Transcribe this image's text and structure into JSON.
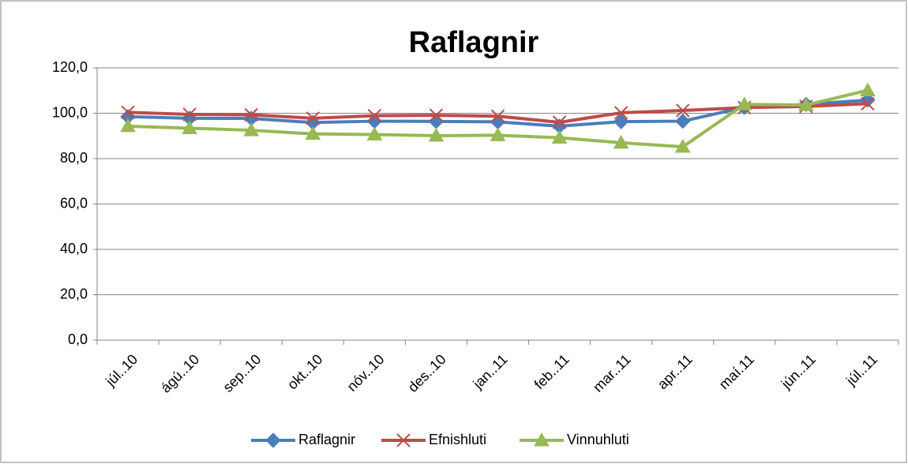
{
  "chart_data": {
    "type": "line",
    "title": "Raflagnir",
    "categories": [
      "júl..10",
      "ágú..10",
      "sep..10",
      "okt..10",
      "nóv..10",
      "des..10",
      "jan..11",
      "feb..11",
      "mar..11",
      "apr..11",
      "maí.11",
      "jún..11",
      "júl..11"
    ],
    "series": [
      {
        "name": "Raflagnir",
        "color": "#4a7ebb",
        "marker": "diamond",
        "values": [
          98.5,
          97.8,
          97.7,
          95.9,
          96.5,
          96.4,
          96.2,
          94.3,
          96.3,
          96.5,
          102.6,
          103.9,
          105.8
        ]
      },
      {
        "name": "Efnishluti",
        "color": "#be4b48",
        "marker": "x",
        "values": [
          100.4,
          99.5,
          99.3,
          97.8,
          98.9,
          99.1,
          98.7,
          96.0,
          100.2,
          101.2,
          102.5,
          103.0,
          104.2
        ]
      },
      {
        "name": "Vinnuhluti",
        "color": "#98b954",
        "marker": "triangle",
        "values": [
          94.3,
          93.4,
          92.5,
          90.9,
          90.6,
          90.1,
          90.3,
          89.2,
          87.0,
          85.2,
          103.9,
          103.6,
          110.1
        ]
      }
    ],
    "ylim": [
      0,
      120
    ],
    "yticks": [
      {
        "value": 0,
        "label": "0,0"
      },
      {
        "value": 20,
        "label": "20,0"
      },
      {
        "value": 40,
        "label": "40,0"
      },
      {
        "value": 60,
        "label": "60,0"
      },
      {
        "value": 80,
        "label": "80,0"
      },
      {
        "value": 100,
        "label": "100,0"
      },
      {
        "value": 120,
        "label": "120,0"
      }
    ],
    "grid": true,
    "legend": "bottom"
  }
}
